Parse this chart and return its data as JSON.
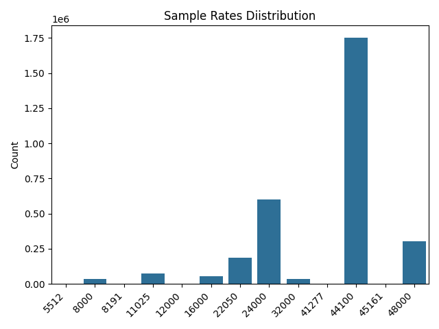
{
  "categories": [
    "5512",
    "8000",
    "8191",
    "11025",
    "12000",
    "16000",
    "22050",
    "24000",
    "32000",
    "41277",
    "44100",
    "45161",
    "48000"
  ],
  "values": [
    2000,
    35000,
    1000,
    75000,
    2000,
    55000,
    185000,
    600000,
    35000,
    2000,
    1750000,
    1000,
    305000
  ],
  "bar_color": "#2e6f96",
  "title": "Sample Rates Diistribution",
  "xlabel": "",
  "ylabel": "Count",
  "background_color": "#ffffff",
  "figsize": [
    6.4,
    4.8
  ],
  "dpi": 100
}
